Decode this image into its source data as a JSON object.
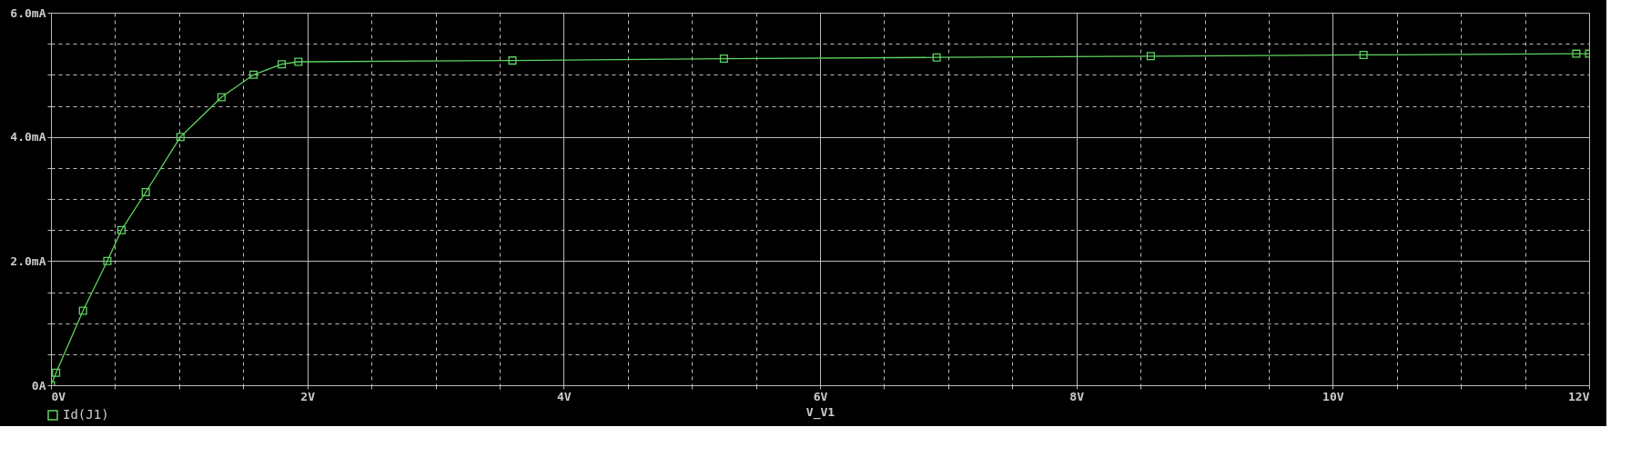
{
  "chart_data": {
    "type": "line",
    "xlabel": "V_V1",
    "x": [
      0,
      0.04,
      0.25,
      0.44,
      0.55,
      0.74,
      1.01,
      1.33,
      1.58,
      1.8,
      1.93,
      3.6,
      5.25,
      6.91,
      8.58,
      10.24,
      11.9,
      12.0
    ],
    "series": [
      {
        "name": "Id(J1)",
        "color": "#5fd35f",
        "values": [
          0,
          0.2,
          1.2,
          2.0,
          2.5,
          3.11,
          4.0,
          4.64,
          5.0,
          5.17,
          5.21,
          5.23,
          5.26,
          5.28,
          5.3,
          5.32,
          5.34,
          5.34
        ]
      }
    ],
    "xlim": [
      0,
      12
    ],
    "ylim": [
      0,
      6
    ],
    "xticks": [
      {
        "value": 0,
        "label": "0V"
      },
      {
        "value": 0.5,
        "label": null
      },
      {
        "value": 1,
        "label": null
      },
      {
        "value": 1.5,
        "label": null
      },
      {
        "value": 2,
        "label": "2V"
      },
      {
        "value": 2.5,
        "label": null
      },
      {
        "value": 3,
        "label": null
      },
      {
        "value": 3.5,
        "label": null
      },
      {
        "value": 4,
        "label": "4V"
      },
      {
        "value": 4.5,
        "label": null
      },
      {
        "value": 5,
        "label": null
      },
      {
        "value": 5.5,
        "label": null
      },
      {
        "value": 6,
        "label": "6V"
      },
      {
        "value": 6.5,
        "label": null
      },
      {
        "value": 7,
        "label": null
      },
      {
        "value": 7.5,
        "label": null
      },
      {
        "value": 8,
        "label": "8V"
      },
      {
        "value": 8.5,
        "label": null
      },
      {
        "value": 9,
        "label": null
      },
      {
        "value": 9.5,
        "label": null
      },
      {
        "value": 10,
        "label": "10V"
      },
      {
        "value": 10.5,
        "label": null
      },
      {
        "value": 11,
        "label": null
      },
      {
        "value": 11.5,
        "label": null
      },
      {
        "value": 12,
        "label": "12V"
      }
    ],
    "yticks": [
      {
        "value": 0,
        "label": "0A"
      },
      {
        "value": 0.5,
        "label": null
      },
      {
        "value": 1,
        "label": null
      },
      {
        "value": 1.5,
        "label": null
      },
      {
        "value": 2,
        "label": "2.0mA"
      },
      {
        "value": 2.5,
        "label": null
      },
      {
        "value": 3,
        "label": null
      },
      {
        "value": 3.5,
        "label": null
      },
      {
        "value": 4,
        "label": "4.0mA"
      },
      {
        "value": 4.5,
        "label": null
      },
      {
        "value": 5,
        "label": null
      },
      {
        "value": 5.5,
        "label": null
      },
      {
        "value": 6,
        "label": "6.0mA"
      }
    ],
    "grid": true,
    "legend": "bottom left",
    "marker": "square",
    "line_style": "solid"
  }
}
